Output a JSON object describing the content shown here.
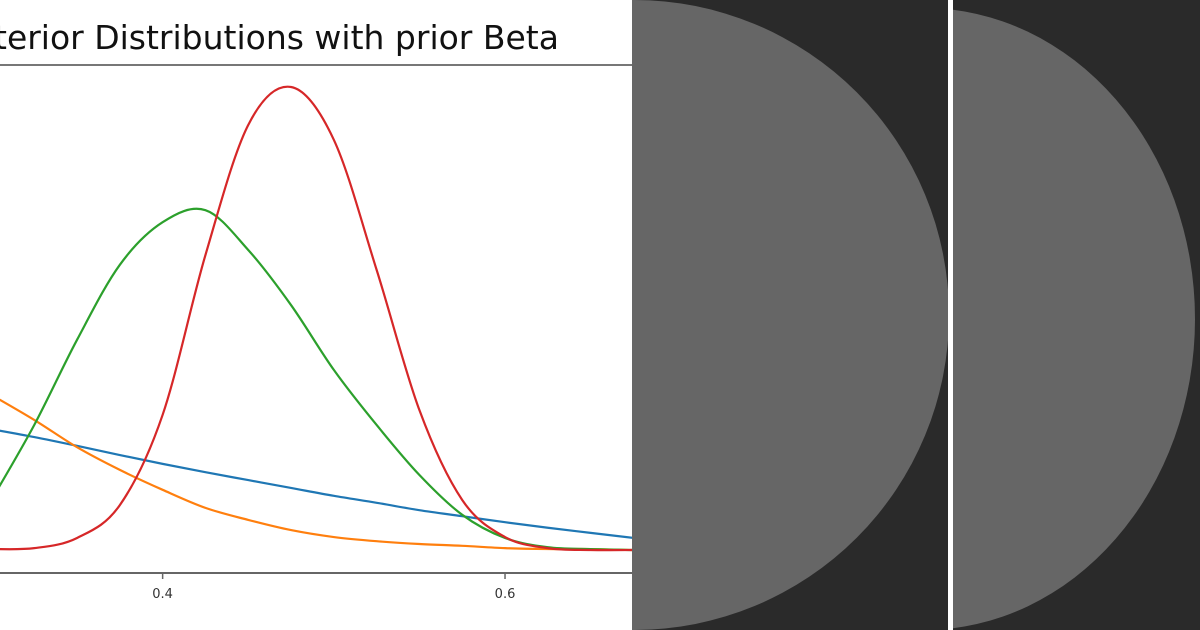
{
  "chart_data": {
    "type": "line",
    "title": "terior Distributions with prior Beta",
    "xlabel": "",
    "ylabel": "",
    "xlim": [
      0.305,
      0.673
    ],
    "ylim": [
      0,
      10.8
    ],
    "x_ticks": [
      "0.4",
      "0.6"
    ],
    "x_tick_values": [
      0.4,
      0.6
    ],
    "grid": false,
    "x": [
      0.3,
      0.325,
      0.35,
      0.375,
      0.4,
      0.425,
      0.45,
      0.475,
      0.5,
      0.525,
      0.55,
      0.575,
      0.6,
      0.625,
      0.65,
      0.675
    ],
    "series": [
      {
        "color": "#1f77b4",
        "values": [
          2.61,
          2.44,
          2.25,
          2.05,
          1.86,
          1.68,
          1.51,
          1.34,
          1.17,
          1.02,
          0.86,
          0.73,
          0.6,
          0.48,
          0.37,
          0.26
        ]
      },
      {
        "color": "#ff7f0e",
        "values": [
          3.35,
          2.81,
          2.22,
          1.73,
          1.3,
          0.91,
          0.65,
          0.43,
          0.28,
          0.19,
          0.13,
          0.09,
          0.04,
          0.02,
          0.02,
          0.0
        ]
      },
      {
        "color": "#2ca02c",
        "values": [
          1.08,
          2.7,
          4.54,
          6.16,
          7.08,
          7.34,
          6.48,
          5.29,
          3.89,
          2.7,
          1.62,
          0.76,
          0.26,
          0.06,
          0.02,
          0.0
        ]
      },
      {
        "color": "#d62728",
        "values": [
          0.02,
          0.04,
          0.26,
          0.97,
          2.92,
          6.37,
          9.18,
          10.0,
          8.86,
          6.05,
          3.02,
          1.08,
          0.28,
          0.04,
          0.0,
          0.0
        ]
      }
    ]
  },
  "panels": {
    "background": "#2a2a2a",
    "shape_color": "#666666",
    "divider_color": "#ffffff"
  }
}
